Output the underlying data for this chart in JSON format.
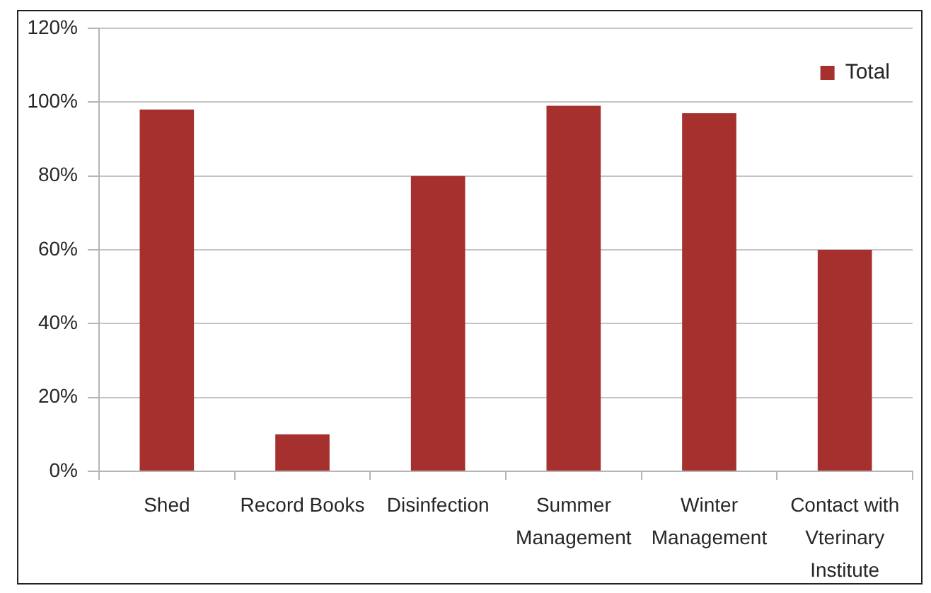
{
  "chart_data": {
    "type": "bar",
    "categories": [
      "Shed",
      "Record Books",
      "Disinfection",
      "Summer Management",
      "Winter Management",
      "Contact with Vterinary Institute"
    ],
    "series": [
      {
        "name": "Total",
        "color": "#a5302e",
        "values": [
          98,
          10,
          80,
          99,
          97,
          60
        ]
      }
    ],
    "ylim": [
      0,
      120
    ],
    "yticks": [
      {
        "value": 0,
        "label": "0%"
      },
      {
        "value": 20,
        "label": "20%"
      },
      {
        "value": 40,
        "label": "40%"
      },
      {
        "value": 60,
        "label": "60%"
      },
      {
        "value": 80,
        "label": "80%"
      },
      {
        "value": 100,
        "label": "100%"
      },
      {
        "value": 120,
        "label": "120%"
      }
    ],
    "grid": "y",
    "legend": "top right"
  }
}
